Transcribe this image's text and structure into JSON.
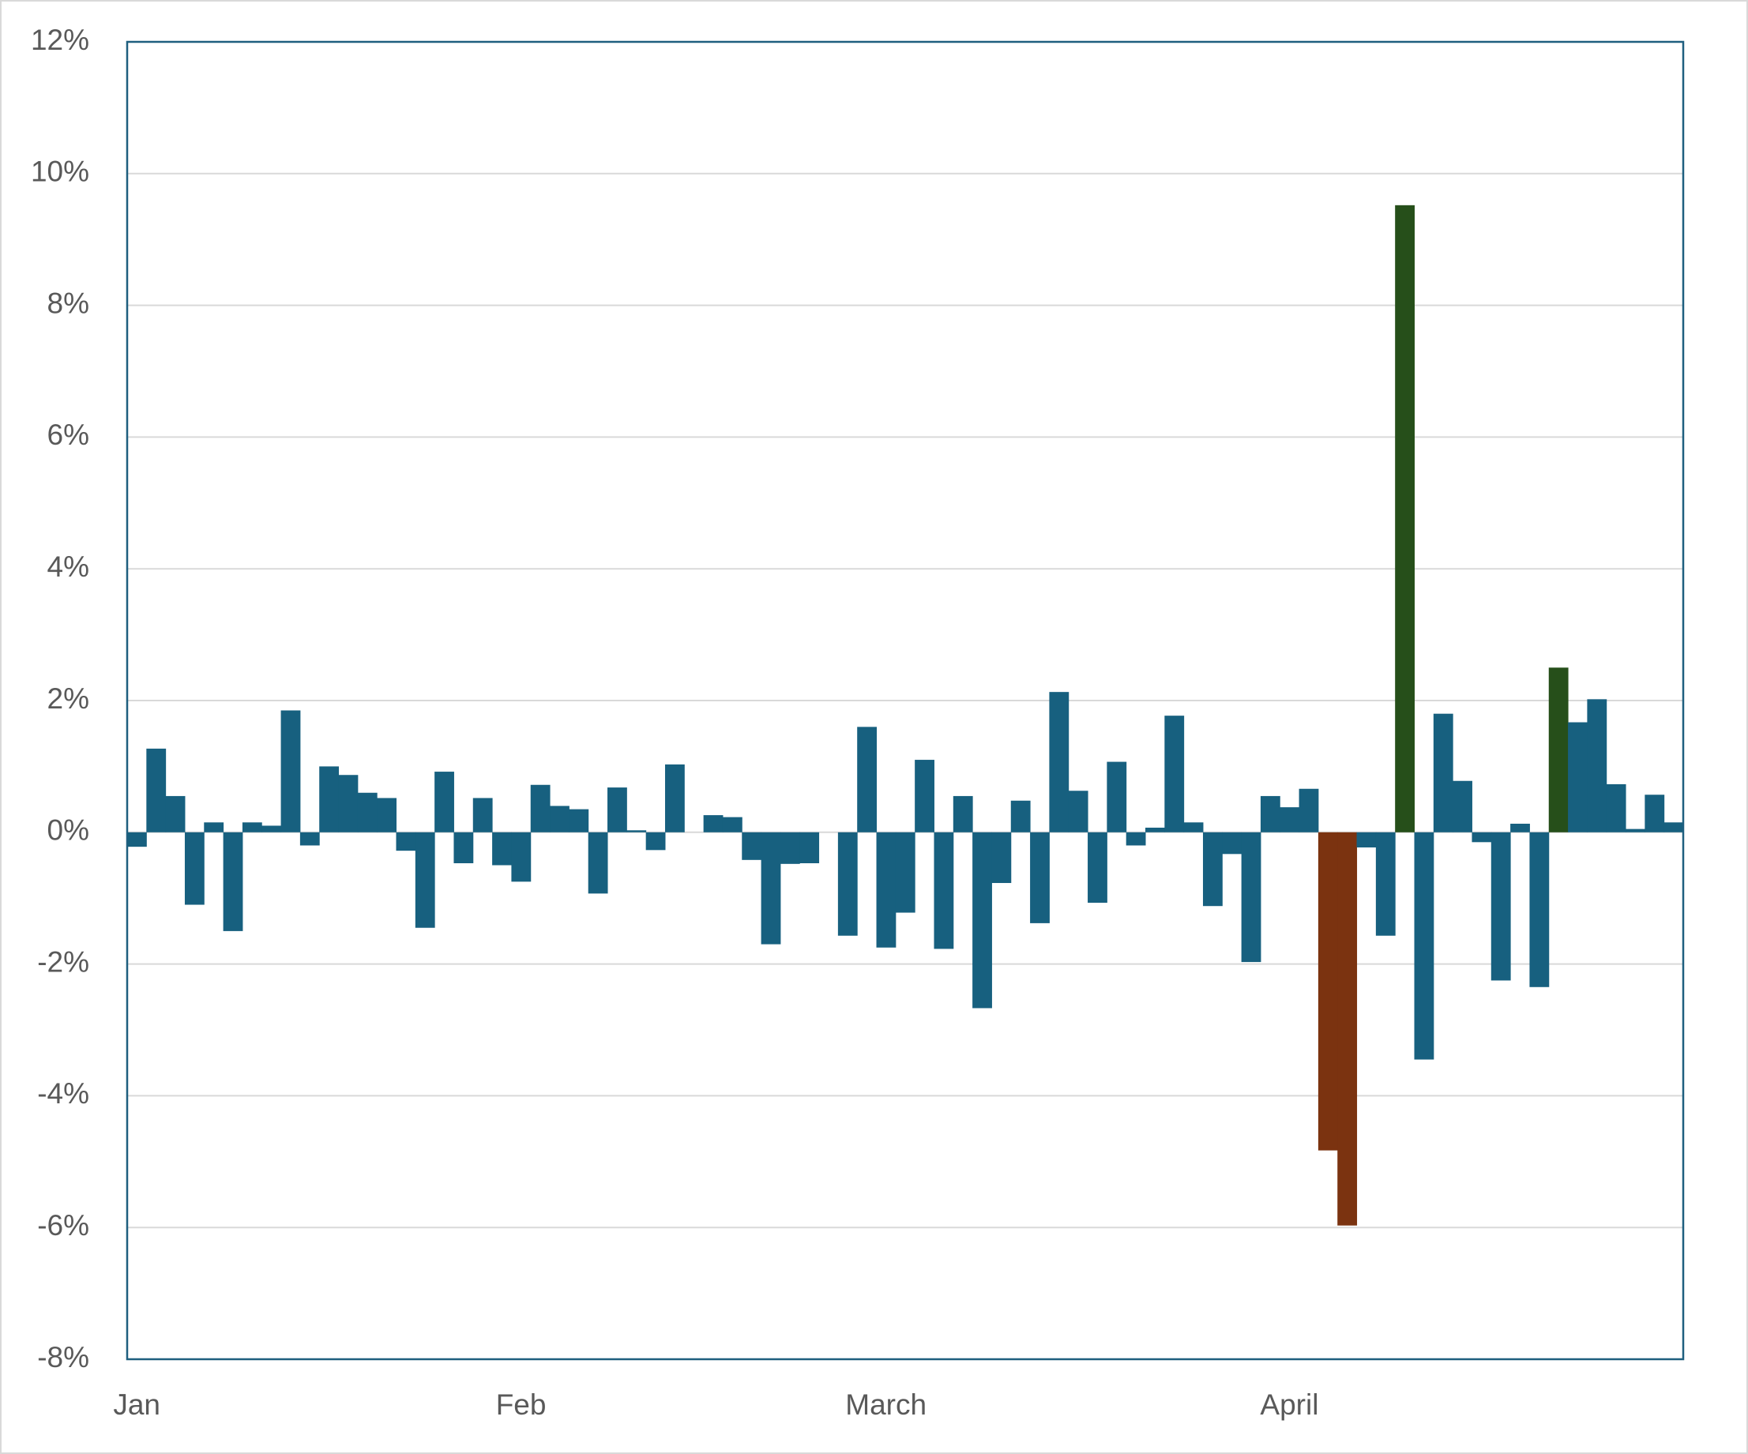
{
  "chart_data": {
    "type": "bar",
    "categories": [
      "Jan",
      null,
      null,
      null,
      null,
      null,
      null,
      null,
      null,
      null,
      null,
      null,
      null,
      null,
      null,
      null,
      null,
      null,
      null,
      null,
      "Feb",
      null,
      null,
      null,
      null,
      null,
      null,
      null,
      null,
      null,
      null,
      null,
      null,
      null,
      null,
      null,
      null,
      null,
      null,
      "March",
      null,
      null,
      null,
      null,
      null,
      null,
      null,
      null,
      null,
      null,
      null,
      null,
      null,
      null,
      null,
      null,
      null,
      null,
      null,
      null,
      "April",
      null,
      null,
      null,
      null,
      null,
      null,
      null,
      null,
      null,
      null,
      null,
      null,
      null,
      null,
      null,
      null,
      null,
      null,
      null,
      null
    ],
    "values": [
      -0.22,
      1.27,
      0.55,
      -1.1,
      0.15,
      -1.5,
      0.15,
      0.1,
      1.85,
      -0.2,
      1.0,
      0.87,
      0.6,
      0.52,
      -0.28,
      -1.45,
      0.92,
      -0.47,
      0.52,
      -0.5,
      -0.75,
      0.72,
      0.4,
      0.35,
      -0.93,
      0.68,
      0.03,
      -0.27,
      1.03,
      0,
      0.26,
      0.23,
      -0.42,
      -1.7,
      -0.48,
      -0.47,
      0,
      -1.57,
      1.6,
      -1.75,
      -1.22,
      1.1,
      -1.77,
      0.55,
      -2.67,
      -0.77,
      0.48,
      -1.38,
      2.13,
      0.63,
      -1.07,
      1.07,
      -0.2,
      0.07,
      1.77,
      0.15,
      -1.12,
      -0.33,
      -1.97,
      0.55,
      0.38,
      0.66,
      -4.83,
      -5.97,
      -0.23,
      -1.57,
      9.52,
      -3.45,
      1.8,
      0.78,
      -0.15,
      -2.25,
      0.13,
      -2.35,
      2.5,
      1.67,
      2.02,
      0.73,
      0.05,
      0.57,
      0.15
    ],
    "color": "#17607f",
    "colors": [
      "#17607f",
      "#17607f",
      "#17607f",
      "#17607f",
      "#17607f",
      "#17607f",
      "#17607f",
      "#17607f",
      "#17607f",
      "#17607f",
      "#17607f",
      "#17607f",
      "#17607f",
      "#17607f",
      "#17607f",
      "#17607f",
      "#17607f",
      "#17607f",
      "#17607f",
      "#17607f",
      "#17607f",
      "#17607f",
      "#17607f",
      "#17607f",
      "#17607f",
      "#17607f",
      "#17607f",
      "#17607f",
      "#17607f",
      "#17607f",
      "#17607f",
      "#17607f",
      "#17607f",
      "#17607f",
      "#17607f",
      "#17607f",
      "#17607f",
      "#17607f",
      "#17607f",
      "#17607f",
      "#17607f",
      "#17607f",
      "#17607f",
      "#17607f",
      "#17607f",
      "#17607f",
      "#17607f",
      "#17607f",
      "#17607f",
      "#17607f",
      "#17607f",
      "#17607f",
      "#17607f",
      "#17607f",
      "#17607f",
      "#17607f",
      "#17607f",
      "#17607f",
      "#17607f",
      "#17607f",
      "#17607f",
      "#17607f",
      "#7b3310",
      "#7b3310",
      "#17607f",
      "#17607f",
      "#264f1a",
      "#17607f",
      "#17607f",
      "#17607f",
      "#17607f",
      "#17607f",
      "#17607f",
      "#17607f",
      "#264f1a",
      "#17607f",
      "#17607f",
      "#17607f",
      "#17607f",
      "#17607f",
      "#17607f"
    ],
    "ylim": [
      -8,
      12
    ],
    "yticks": [
      {
        "value": -8,
        "label": "-8%"
      },
      {
        "value": -6,
        "label": "-6%"
      },
      {
        "value": -4,
        "label": "-4%"
      },
      {
        "value": -2,
        "label": "-2%"
      },
      {
        "value": 0,
        "label": "0%"
      },
      {
        "value": 2,
        "label": "2%"
      },
      {
        "value": 4,
        "label": "4%"
      },
      {
        "value": 6,
        "label": "6%"
      },
      {
        "value": 8,
        "label": "8%"
      },
      {
        "value": 10,
        "label": "10%"
      },
      {
        "value": 12,
        "label": "12%"
      }
    ],
    "grid": true
  }
}
